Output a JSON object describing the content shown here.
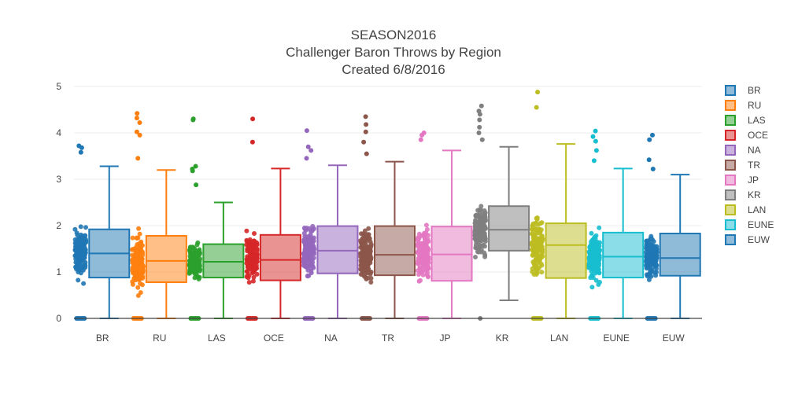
{
  "chart_data": {
    "type": "box",
    "title_lines": [
      "SEASON2016",
      "Challenger Baron Throws by Region",
      "Created 6/8/2016"
    ],
    "xlabel": "",
    "ylabel": "",
    "ylim": [
      0,
      5
    ],
    "yticks": [
      0,
      1,
      2,
      3,
      4,
      5
    ],
    "grid": true,
    "legend_position": "right",
    "categories": [
      "BR",
      "RU",
      "LAS",
      "OCE",
      "NA",
      "TR",
      "JP",
      "KR",
      "LAN",
      "EUNE",
      "EUW"
    ],
    "series": [
      {
        "name": "BR",
        "color": "#1f77b4",
        "min": 0,
        "q1": 0.88,
        "median": 1.4,
        "q3": 1.92,
        "max": 3.28,
        "outliers": [
          3.58,
          3.68,
          3.72
        ]
      },
      {
        "name": "RU",
        "color": "#ff7f0e",
        "min": 0,
        "q1": 0.78,
        "median": 1.24,
        "q3": 1.78,
        "max": 3.2,
        "outliers": [
          3.45,
          3.95,
          4.02,
          4.22,
          4.32,
          4.42
        ]
      },
      {
        "name": "LAS",
        "color": "#2ca02c",
        "min": 0,
        "q1": 0.88,
        "median": 1.22,
        "q3": 1.6,
        "max": 2.5,
        "outliers": [
          2.88,
          3.18,
          3.22,
          3.28,
          4.28,
          4.3
        ]
      },
      {
        "name": "OCE",
        "color": "#d62728",
        "min": 0,
        "q1": 0.82,
        "median": 1.26,
        "q3": 1.8,
        "max": 3.23,
        "outliers": [
          3.8,
          4.3
        ]
      },
      {
        "name": "NA",
        "color": "#9467bd",
        "min": 0,
        "q1": 0.97,
        "median": 1.46,
        "q3": 1.99,
        "max": 3.3,
        "outliers": [
          3.45,
          3.62,
          3.7,
          4.05
        ]
      },
      {
        "name": "TR",
        "color": "#8c564b",
        "min": 0,
        "q1": 0.93,
        "median": 1.37,
        "q3": 1.99,
        "max": 3.38,
        "outliers": [
          3.55,
          3.8,
          4.02,
          4.18,
          4.35
        ]
      },
      {
        "name": "JP",
        "color": "#e377c2",
        "min": 0,
        "q1": 0.81,
        "median": 1.38,
        "q3": 1.98,
        "max": 3.62,
        "outliers": [
          3.85,
          3.95,
          4.0
        ]
      },
      {
        "name": "KR",
        "color": "#7f7f7f",
        "min": 0.39,
        "q1": 1.46,
        "median": 1.91,
        "q3": 2.42,
        "max": 3.7,
        "outliers": [
          0.0,
          3.85,
          4.0,
          4.12,
          4.28,
          4.4,
          4.47,
          4.58
        ]
      },
      {
        "name": "LAN",
        "color": "#bcbd22",
        "min": 0,
        "q1": 0.87,
        "median": 1.58,
        "q3": 2.05,
        "max": 3.76,
        "outliers": [
          4.55,
          4.88
        ]
      },
      {
        "name": "EUNE",
        "color": "#17becf",
        "min": 0,
        "q1": 0.88,
        "median": 1.33,
        "q3": 1.85,
        "max": 3.23,
        "outliers": [
          3.4,
          3.62,
          3.82,
          3.92,
          4.04
        ]
      },
      {
        "name": "EUW",
        "color": "#1f77b4",
        "min": 0,
        "q1": 0.92,
        "median": 1.3,
        "q3": 1.83,
        "max": 3.1,
        "outliers": [
          3.22,
          3.42,
          3.85,
          3.95
        ]
      }
    ]
  }
}
